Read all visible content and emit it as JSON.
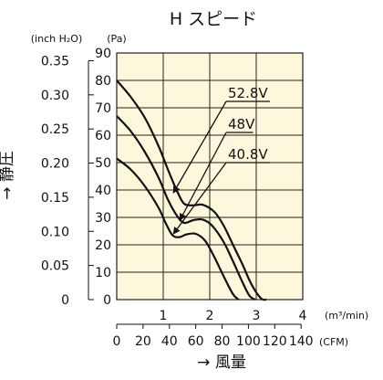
{
  "chart_data": {
    "type": "line",
    "title": "H スピード",
    "xlabel": "→ 風量",
    "ylabel": "→ 静圧",
    "x_unit_primary": "(m³/min)",
    "x_unit_secondary": "(CFM)",
    "y_unit_left": "(inch H₂O)",
    "y_unit_right": "(Pa)",
    "xlim": [
      0,
      4
    ],
    "ylim": [
      0,
      90
    ],
    "grid": true,
    "plot_background": "#fdf8dc",
    "x_ticks_m3min": [
      "1",
      "2",
      "3",
      "4"
    ],
    "x_ticks_cfm": [
      "0",
      "20",
      "40",
      "60",
      "80",
      "100",
      "120",
      "140"
    ],
    "y_ticks_pa": [
      "0",
      "10",
      "20",
      "30",
      "40",
      "50",
      "60",
      "70",
      "80",
      "90"
    ],
    "y_ticks_inch": [
      "0",
      "0.05",
      "0.10",
      "0.15",
      "0.20",
      "0.25",
      "0.30",
      "0.35"
    ],
    "series": [
      {
        "name": "52.8V",
        "x": [
          0,
          0.3,
          0.6,
          0.9,
          1.1,
          1.3,
          1.45,
          1.65,
          1.85,
          2.1,
          2.3,
          2.5,
          2.7,
          2.9,
          3.1,
          3.22
        ],
        "y": [
          80,
          74,
          66.5,
          56,
          47.5,
          39.5,
          35,
          34.4,
          34.6,
          32,
          27,
          20,
          13,
          5.5,
          0.5,
          0
        ]
      },
      {
        "name": "48V",
        "x": [
          0,
          0.3,
          0.6,
          0.9,
          1.1,
          1.3,
          1.45,
          1.65,
          1.85,
          2.05,
          2.3,
          2.5,
          2.7,
          2.85,
          2.98
        ],
        "y": [
          67,
          61.5,
          54,
          44.5,
          36.5,
          30.5,
          28,
          29,
          29.2,
          27,
          21,
          14,
          6.5,
          1.5,
          0
        ]
      },
      {
        "name": "40.8V",
        "x": [
          0,
          0.3,
          0.6,
          0.9,
          1.05,
          1.2,
          1.35,
          1.5,
          1.7,
          1.9,
          2.1,
          2.3,
          2.5,
          2.62
        ],
        "y": [
          51.5,
          47.5,
          41.5,
          33.5,
          28,
          23.5,
          22.8,
          23.8,
          24,
          21.5,
          15.5,
          8.5,
          2,
          0
        ]
      }
    ],
    "annotations": [
      {
        "text": "52.8V",
        "series": "52.8V",
        "point": [
          1.22,
          39
        ]
      },
      {
        "text": "48V",
        "series": "48V",
        "point": [
          1.36,
          29
        ]
      },
      {
        "text": "40.8V",
        "series": "40.8V",
        "point": [
          1.22,
          24
        ]
      }
    ],
    "colors": {
      "line": "#111111",
      "grid": "#222222"
    }
  }
}
